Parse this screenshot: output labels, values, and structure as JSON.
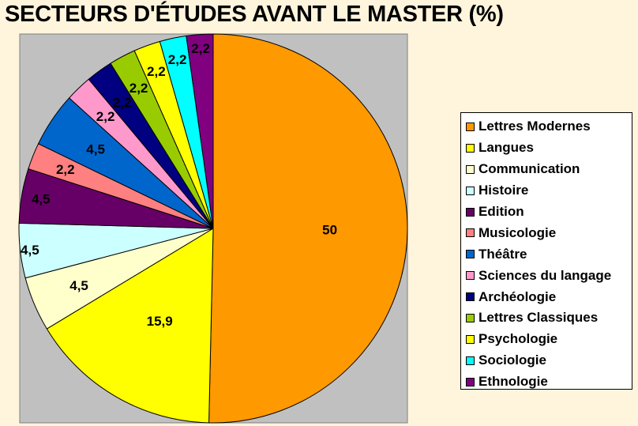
{
  "chart_data": {
    "type": "pie",
    "title": "SECTEURS D'ÉTUDES AVANT LE MASTER (%)",
    "categories": [
      "Lettres Modernes",
      "Langues",
      "Communication",
      "Histoire",
      "Edition",
      "Musicologie",
      "Théâtre",
      "Sciences du langage",
      "Archéologie",
      "Lettres Classiques",
      "Psychologie",
      "Sociologie",
      "Ethnologie"
    ],
    "values": [
      50,
      15.9,
      4.5,
      4.5,
      4.5,
      2.2,
      4.5,
      2.2,
      2.2,
      2.2,
      2.2,
      2.2,
      2.2
    ],
    "data_labels": [
      "50",
      "15,9",
      "4,5",
      "4,5",
      "4,5",
      "2,2",
      "4,5",
      "2,2",
      "2,2",
      "2,2",
      "2,2",
      "2,2",
      "2,2"
    ],
    "colors": [
      "#ff9900",
      "#ffff00",
      "#ffffcc",
      "#ccffff",
      "#660066",
      "#ff8080",
      "#0066cc",
      "#ff99cc",
      "#000080",
      "#99cc00",
      "#ffff00",
      "#00ffff",
      "#800080"
    ],
    "plot_background": "#c0c0c0",
    "legend_position": "right"
  }
}
